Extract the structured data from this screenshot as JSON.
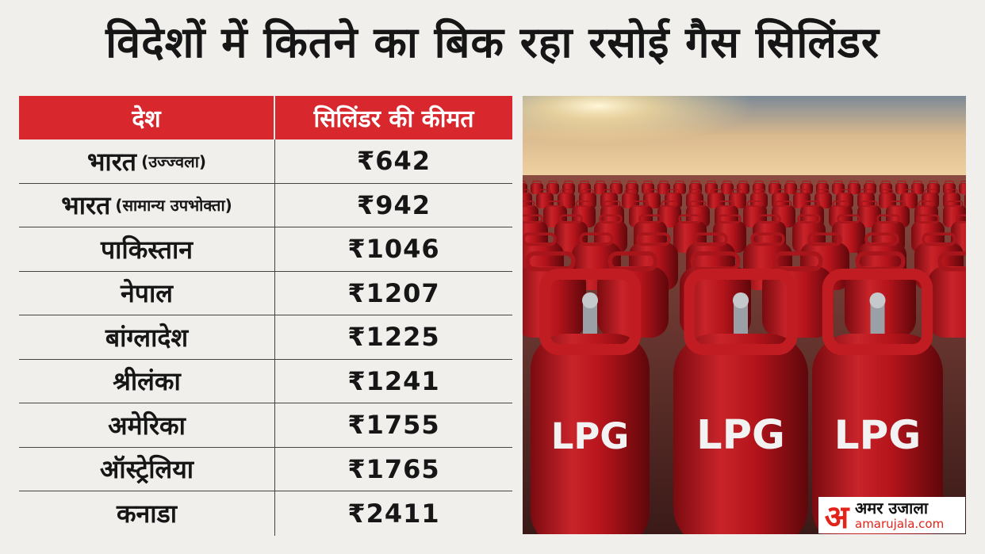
{
  "title": "विदेशों में कितने का बिक रहा रसोई गैस सिलिंडर",
  "table": {
    "header": {
      "country": "देश",
      "price": "सिलिंडर की कीमत"
    },
    "rows": [
      {
        "country": "भारत",
        "note": "(उज्ज्वला)",
        "price": "₹642"
      },
      {
        "country": "भारत",
        "note": "(सामान्य उपभोक्ता)",
        "price": "₹942"
      },
      {
        "country": "पाकिस्तान",
        "note": "",
        "price": "₹1046"
      },
      {
        "country": "नेपाल",
        "note": "",
        "price": "₹1207"
      },
      {
        "country": "बांग्लादेश",
        "note": "",
        "price": "₹1225"
      },
      {
        "country": "श्रीलंका",
        "note": "",
        "price": "₹1241"
      },
      {
        "country": "अमेरिका",
        "note": "",
        "price": "₹1755"
      },
      {
        "country": "ऑस्ट्रेलिया",
        "note": "",
        "price": "₹1765"
      },
      {
        "country": "कनाडा",
        "note": "",
        "price": "₹2411"
      }
    ]
  },
  "photo": {
    "cylinder_label": "LPG"
  },
  "logo": {
    "mark": "अ",
    "name": "अमर उजाला",
    "site": "amarujala.com"
  },
  "colors": {
    "header_red": "#d8282e",
    "cylinder_red": "#b5141b",
    "logo_red": "#e2231a"
  }
}
